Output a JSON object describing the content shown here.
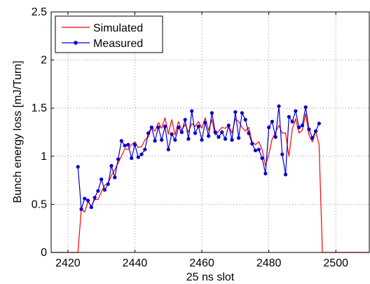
{
  "chart_data": {
    "type": "line",
    "xlabel": "25 ns slot",
    "ylabel": "Bunch energy loss [mJ/Turn]",
    "xlim": [
      2415,
      2510
    ],
    "ylim": [
      0,
      2.5
    ],
    "xticks": [
      2420,
      2440,
      2460,
      2480,
      2500
    ],
    "xtick_labels": [
      "2420",
      "2440",
      "2460",
      "2480",
      "2500"
    ],
    "yticks": [
      0,
      0.5,
      1,
      1.5,
      2,
      2.5
    ],
    "ytick_labels": [
      "0",
      "0.5",
      "1",
      "1.5",
      "2",
      "2.5"
    ],
    "grid": true,
    "legend_position": "top-left",
    "series": [
      {
        "name": "Simulated",
        "color": "#ff0000",
        "marker": "none",
        "x": [
          2415,
          2423,
          2424,
          2425,
          2426,
          2427,
          2428,
          2429,
          2430,
          2431,
          2432,
          2433,
          2434,
          2435,
          2436,
          2437,
          2438,
          2439,
          2440,
          2441,
          2442,
          2443,
          2444,
          2445,
          2446,
          2447,
          2448,
          2449,
          2450,
          2451,
          2452,
          2453,
          2454,
          2455,
          2456,
          2457,
          2458,
          2459,
          2460,
          2461,
          2462,
          2463,
          2464,
          2465,
          2466,
          2467,
          2468,
          2469,
          2470,
          2471,
          2472,
          2473,
          2474,
          2475,
          2476,
          2477,
          2478,
          2479,
          2480,
          2481,
          2482,
          2483,
          2484,
          2485,
          2486,
          2487,
          2488,
          2489,
          2490,
          2491,
          2492,
          2493,
          2494,
          2495,
          2496,
          2510
        ],
        "y": [
          0,
          0,
          0.45,
          0.42,
          0.53,
          0.48,
          0.55,
          0.55,
          0.63,
          0.7,
          0.72,
          0.8,
          0.86,
          0.93,
          1.0,
          1.08,
          1.07,
          1.12,
          1.15,
          1.09,
          1.1,
          1.17,
          1.2,
          1.3,
          1.26,
          1.35,
          1.29,
          1.4,
          1.23,
          1.38,
          1.22,
          1.36,
          1.27,
          1.33,
          1.25,
          1.34,
          1.31,
          1.36,
          1.29,
          1.4,
          1.27,
          1.38,
          1.22,
          1.26,
          1.3,
          1.29,
          1.32,
          1.24,
          1.39,
          1.36,
          1.3,
          1.26,
          1.3,
          1.15,
          1.12,
          1.15,
          1.07,
          0.9,
          1.02,
          1.18,
          1.25,
          1.32,
          1.24,
          1.24,
          1.0,
          1.28,
          1.39,
          1.24,
          1.27,
          1.44,
          1.22,
          1.15,
          1.26,
          1.12,
          0,
          0
        ]
      },
      {
        "name": "Measured",
        "color": "#0000cc",
        "marker": "circle",
        "x": [
          2423,
          2424,
          2425,
          2426,
          2427,
          2428,
          2429,
          2430,
          2431,
          2432,
          2433,
          2434,
          2435,
          2436,
          2437,
          2438,
          2439,
          2440,
          2441,
          2442,
          2443,
          2444,
          2445,
          2446,
          2447,
          2448,
          2449,
          2450,
          2451,
          2452,
          2453,
          2454,
          2455,
          2456,
          2457,
          2458,
          2459,
          2460,
          2461,
          2462,
          2463,
          2464,
          2465,
          2466,
          2467,
          2468,
          2469,
          2470,
          2471,
          2472,
          2473,
          2474,
          2475,
          2476,
          2477,
          2478,
          2479,
          2480,
          2481,
          2482,
          2483,
          2484,
          2485,
          2486,
          2487,
          2488,
          2489,
          2490,
          2491,
          2492,
          2493,
          2494,
          2495
        ],
        "y": [
          0.89,
          0.45,
          0.56,
          0.54,
          0.47,
          0.57,
          0.64,
          0.76,
          0.65,
          0.71,
          0.9,
          0.78,
          0.97,
          1.16,
          1.11,
          1.12,
          0.98,
          1.12,
          0.99,
          1.02,
          1.07,
          1.24,
          1.3,
          1.16,
          1.3,
          1.17,
          1.31,
          1.07,
          1.23,
          1.17,
          1.3,
          1.25,
          1.38,
          1.18,
          1.47,
          1.24,
          1.31,
          1.17,
          1.35,
          1.21,
          1.45,
          1.25,
          1.2,
          1.25,
          1.18,
          1.32,
          1.17,
          1.46,
          1.19,
          1.45,
          1.38,
          1.24,
          1.13,
          1.06,
          1.07,
          0.98,
          0.82,
          1.3,
          1.36,
          1.2,
          1.52,
          1.02,
          0.81,
          1.41,
          1.36,
          1.47,
          1.3,
          1.32,
          1.51,
          1.28,
          1.19,
          1.26,
          1.34
        ]
      }
    ]
  }
}
